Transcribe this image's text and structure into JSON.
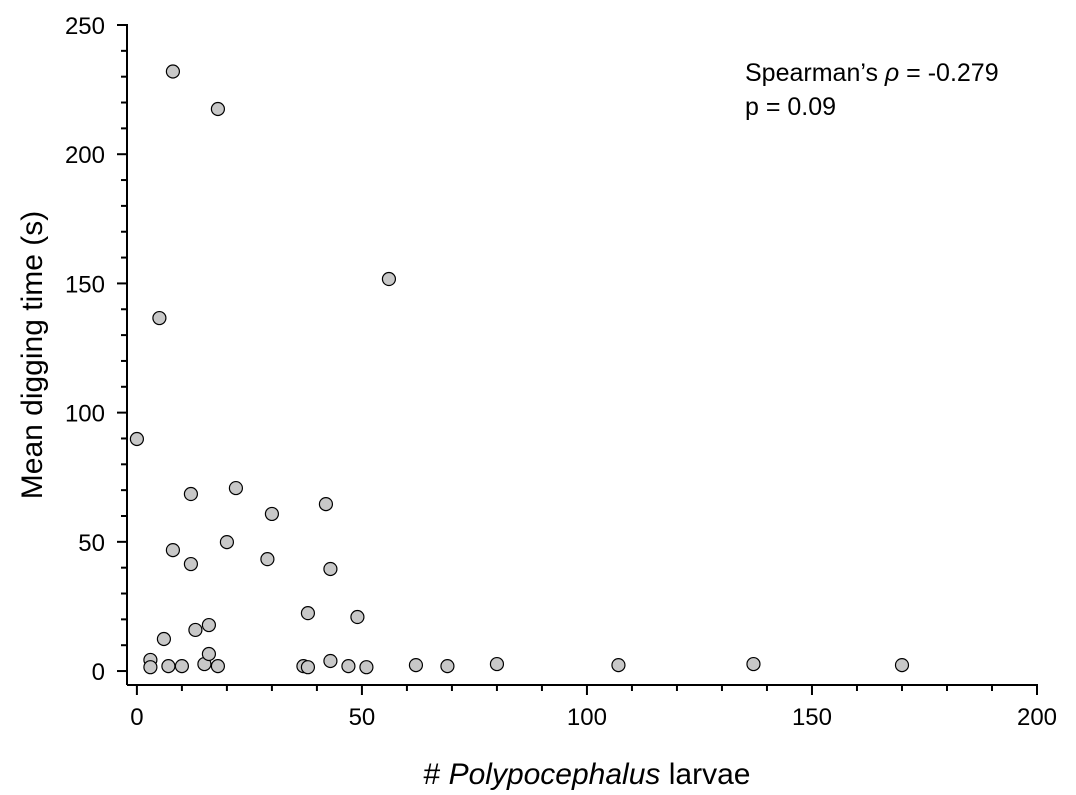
{
  "chart_data": {
    "type": "scatter",
    "x_label_parts": [
      "# ",
      "Polypocephalus",
      " larvae"
    ],
    "y_label": "Mean digging time (s)",
    "annotation_parts": [
      "Spearman’s ",
      "ρ",
      " = -0.279"
    ],
    "annotation_line2": "p = 0.09",
    "x": [
      8,
      18,
      56,
      5,
      0,
      22,
      12,
      30,
      42,
      8,
      20,
      29,
      12,
      43,
      38,
      49,
      16,
      13,
      6,
      3,
      3,
      7,
      10,
      15,
      16,
      18,
      37,
      38,
      43,
      47,
      51,
      62,
      69,
      80,
      107,
      137,
      170
    ],
    "values": [
      232,
      217.5,
      151.7,
      136.6,
      89.8,
      70.8,
      68.5,
      60.8,
      64.6,
      46.8,
      49.9,
      43.3,
      41.4,
      39.5,
      22.4,
      20.9,
      17.8,
      15.9,
      12.4,
      4.3,
      1.5,
      1.9,
      1.9,
      2.7,
      6.6,
      1.9,
      1.9,
      1.5,
      3.9,
      1.9,
      1.5,
      2.3,
      1.9,
      2.7,
      2.3,
      2.7,
      2.3
    ],
    "color": "#c8c8c8",
    "xlim": [
      -2.2,
      200
    ],
    "xticks": [
      0,
      50,
      100,
      150,
      200
    ],
    "ylim": [
      -5.4,
      250
    ],
    "yticks": [
      0,
      50,
      100,
      150,
      200,
      250
    ],
    "minor_per_major": 5
  }
}
